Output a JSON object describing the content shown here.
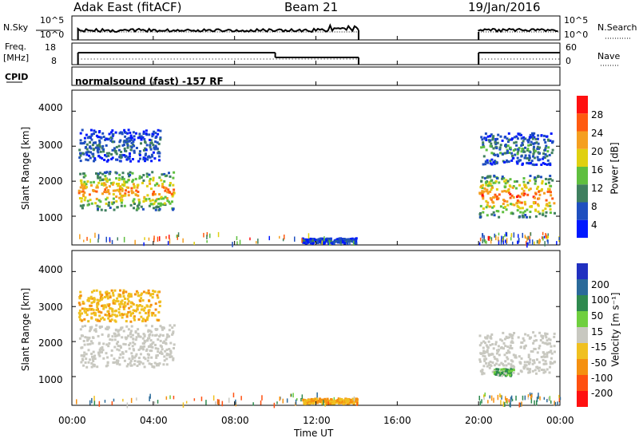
{
  "header": {
    "station": "Adak East (fitACF)",
    "beam": "Beam 21",
    "date": "19/Jan/2016"
  },
  "noise_panel": {
    "left_label": "N.Sky",
    "left_ticks": [
      "10^5",
      "10^0"
    ],
    "right_ticks": [
      "10^5",
      "10^0"
    ],
    "right_label": "N.Search"
  },
  "freq_panel": {
    "left_label_1": "Freq.",
    "left_label_2": "[MHz]",
    "left_ticks": [
      "18",
      "8"
    ],
    "right_ticks": [
      "60",
      "0"
    ],
    "right_label": "Nave"
  },
  "cpid_panel": {
    "label": "CPID",
    "text": "normalsound (fast) -157 RF"
  },
  "power_panel": {
    "ylabel": "Slant Range [km]",
    "yticks": [
      "4000",
      "3000",
      "2000",
      "1000"
    ],
    "colorbar_label": "Power [dB]",
    "colorbar_ticks": [
      "28",
      "24",
      "20",
      "16",
      "12",
      "8",
      "4"
    ],
    "colors": [
      "#0018ff",
      "#1f4fbf",
      "#3f7f5f",
      "#5fbf3f",
      "#e0d010",
      "#f59f20",
      "#ff5a10",
      "#ff1010"
    ]
  },
  "velocity_panel": {
    "ylabel": "Slant Range [km]",
    "yticks": [
      "4000",
      "3000",
      "2000",
      "1000"
    ],
    "colorbar_label": "Velocity [m s⁻¹]",
    "colorbar_ticks": [
      "200",
      "100",
      "50",
      "15",
      "-15",
      "-50",
      "-100",
      "-200"
    ],
    "colors": [
      "#2030c0",
      "#2a6a9a",
      "#2f8a4f",
      "#6fcf3f",
      "#c8c8c0",
      "#f0c020",
      "#f59010",
      "#ff5010",
      "#ff1010"
    ]
  },
  "x_axis": {
    "ticks": [
      "00:00",
      "04:00",
      "08:00",
      "12:00",
      "16:00",
      "20:00",
      "00:00"
    ],
    "label": "Time UT"
  },
  "chart_data": {
    "type": "heatmap",
    "title": "Adak East (fitACF)",
    "subtitle": "Beam 21",
    "date": "19/Jan/2016",
    "xlabel": "Time UT",
    "ylabel": "Slant Range [km]",
    "xlim": [
      0,
      24
    ],
    "ylim": [
      180,
      4600
    ],
    "data_gap_hours": [
      14.1,
      20.0
    ],
    "freq_mhz": [
      {
        "x": [
          0.3,
          10.0
        ],
        "y": 15
      },
      {
        "x": [
          10.0,
          14.1
        ],
        "y": 12
      },
      {
        "x": [
          20.0,
          24.0
        ],
        "y": 15
      }
    ],
    "power_echo_regions": [
      {
        "x": [
          0.3,
          5.0
        ],
        "y_km": [
          1200,
          2300
        ],
        "value_db": 22
      },
      {
        "x": [
          0.3,
          4.3
        ],
        "y_km": [
          2600,
          3500
        ],
        "value_db": 8
      },
      {
        "x": [
          20.0,
          23.7
        ],
        "y_km": [
          1000,
          2200
        ],
        "value_db": 24
      },
      {
        "x": [
          20.0,
          23.6
        ],
        "y_km": [
          2500,
          3400
        ],
        "value_db": 10
      },
      {
        "x": [
          11.3,
          14.0
        ],
        "y_km": [
          250,
          400
        ],
        "value_db": 6
      }
    ],
    "velocity_echo_regions": [
      {
        "x": [
          0.3,
          5.0
        ],
        "y_km": [
          1300,
          2500
        ],
        "value_ms": 0
      },
      {
        "x": [
          0.3,
          4.3
        ],
        "y_km": [
          2600,
          3500
        ],
        "value_ms": -40
      },
      {
        "x": [
          20.0,
          23.7
        ],
        "y_km": [
          1100,
          2300
        ],
        "value_ms": 0
      },
      {
        "x": [
          20.7,
          21.7
        ],
        "y_km": [
          1050,
          1250
        ],
        "value_ms": 30
      },
      {
        "x": [
          11.3,
          14.0
        ],
        "y_km": [
          250,
          400
        ],
        "value_ms": -50
      }
    ]
  }
}
